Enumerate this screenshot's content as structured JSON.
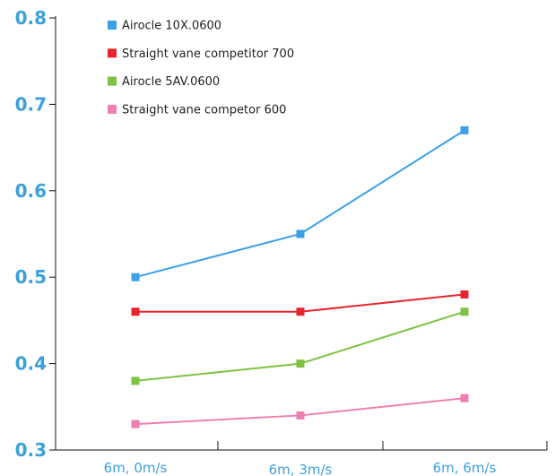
{
  "chart_data": {
    "type": "line",
    "categories": [
      "6m, 0m/s",
      "6m, 3m/s",
      "6m, 6m/s"
    ],
    "y_ticks": [
      "0.3",
      "0.4",
      "0.5",
      "0.6",
      "0.7",
      "0.8"
    ],
    "ylim": [
      0.3,
      0.8
    ],
    "grid": false,
    "legend_position": "top-left",
    "series": [
      {
        "name": "Airocle 10X.0600",
        "color": "#3ba0e6",
        "values": [
          0.5,
          0.55,
          0.67
        ]
      },
      {
        "name": "Straight vane competitor 700",
        "color": "#e8242c",
        "values": [
          0.46,
          0.46,
          0.48
        ]
      },
      {
        "name": "Airocle 5AV.0600",
        "color": "#7ec242",
        "values": [
          0.38,
          0.4,
          0.46
        ]
      },
      {
        "name": "Straight vane competor 600",
        "color": "#ee7fae",
        "values": [
          0.33,
          0.34,
          0.36
        ]
      }
    ]
  }
}
